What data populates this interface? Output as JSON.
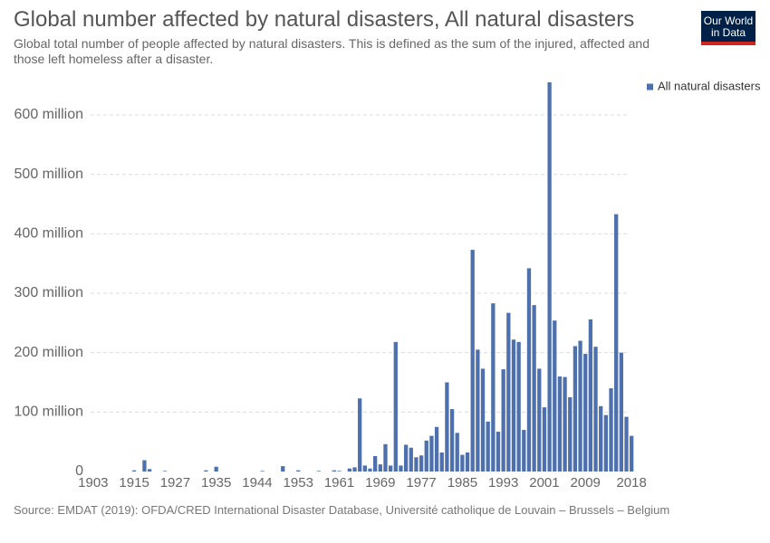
{
  "chart_data": {
    "type": "bar",
    "title": "Global number affected by natural disasters, All natural disasters",
    "subtitle": "Global total number of people affected by natural disasters. This is defined as the sum of the injured, affected and those left homeless after a disaster.",
    "source": "Source: EMDAT (2019): OFDA/CRED International Disaster Database, Université catholique de Louvain – Brussels – Belgium",
    "logo": "Our World in Data",
    "legend": "top-right",
    "grid": true,
    "categories": [
      "1903",
      null,
      null,
      null,
      null,
      null,
      null,
      null,
      "1915",
      null,
      null,
      null,
      null,
      null,
      null,
      null,
      "1927",
      null,
      null,
      null,
      null,
      null,
      null,
      null,
      "1935",
      null,
      null,
      null,
      null,
      null,
      null,
      null,
      "1944",
      null,
      null,
      null,
      null,
      null,
      null,
      null,
      "1953",
      null,
      null,
      null,
      null,
      null,
      null,
      null,
      "1961",
      null,
      null,
      null,
      null,
      null,
      null,
      null,
      "1969",
      null,
      null,
      null,
      null,
      null,
      null,
      null,
      "1977",
      null,
      null,
      null,
      null,
      null,
      null,
      null,
      "1985",
      null,
      null,
      null,
      null,
      null,
      null,
      null,
      "1993",
      null,
      null,
      null,
      null,
      null,
      null,
      null,
      "2001",
      null,
      null,
      null,
      null,
      null,
      null,
      null,
      "2009",
      null,
      null,
      null,
      null,
      null,
      null,
      null,
      null,
      "2018"
    ],
    "series": [
      {
        "name": "All natural disasters",
        "color": "#4e71ae",
        "values": [
          0,
          0,
          0,
          0,
          0,
          0,
          0,
          0,
          2000000,
          0,
          19000000,
          4000000,
          0,
          0,
          1000000,
          0,
          0,
          0,
          0,
          0,
          0,
          0,
          2000000,
          0,
          8000000,
          0,
          0,
          0,
          0,
          0,
          0,
          0,
          0,
          1000000,
          0,
          0,
          0,
          9000000,
          0,
          0,
          2000000,
          0,
          0,
          0,
          1000000,
          0,
          0,
          2000000,
          1000000,
          0,
          5000000,
          7000000,
          123000000,
          10000000,
          5000000,
          26000000,
          12000000,
          46000000,
          10000000,
          218000000,
          10000000,
          45000000,
          40000000,
          24000000,
          27000000,
          52000000,
          60000000,
          75000000,
          32000000,
          150000000,
          105000000,
          65000000,
          28000000,
          32000000,
          373000000,
          205000000,
          173000000,
          84000000,
          283000000,
          67000000,
          172000000,
          267000000,
          222000000,
          218000000,
          70000000,
          342000000,
          280000000,
          173000000,
          108000000,
          655000000,
          254000000,
          160000000,
          159000000,
          125000000,
          211000000,
          220000000,
          198000000,
          256000000,
          210000000,
          110000000,
          95000000,
          140000000,
          433000000,
          200000000,
          92000000,
          60000000
        ]
      }
    ],
    "ylim": [
      0,
      660000000
    ],
    "yticks": [
      0,
      {
        "value": 100000000,
        "label": "100 million"
      },
      {
        "value": 200000000,
        "label": "200 million"
      },
      {
        "value": 300000000,
        "label": "300 million"
      },
      {
        "value": 400000000,
        "label": "400 million"
      },
      {
        "value": 500000000,
        "label": "500 million"
      },
      {
        "value": 600000000,
        "label": "600 million"
      }
    ]
  }
}
